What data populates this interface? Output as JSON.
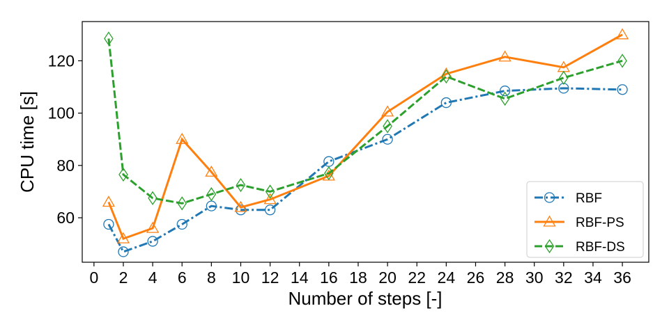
{
  "chart_data": {
    "type": "line",
    "xlabel": "Number of steps [-]",
    "ylabel": "CPU time [s]",
    "xlim": [
      -0.8,
      37.8
    ],
    "ylim": [
      43,
      135
    ],
    "xticks": [
      0,
      2,
      4,
      6,
      8,
      10,
      12,
      14,
      16,
      18,
      20,
      22,
      24,
      26,
      28,
      30,
      32,
      34,
      36
    ],
    "yticks": [
      60,
      80,
      100,
      120
    ],
    "grid": false,
    "legend_position": "lower-right",
    "series": [
      {
        "name": "RBF",
        "color": "#1f77b4",
        "line_style": "dash-dot",
        "marker": "circle",
        "x": [
          1,
          2,
          4,
          6,
          8,
          10,
          12,
          16,
          20,
          24,
          28,
          32,
          36
        ],
        "y": [
          57.5,
          47,
          51,
          57.5,
          64.5,
          63,
          63,
          81.5,
          90,
          104,
          108.5,
          109.5,
          109
        ]
      },
      {
        "name": "RBF-PS",
        "color": "#ff7f0e",
        "line_style": "solid",
        "marker": "triangle",
        "x": [
          1,
          2,
          4,
          6,
          8,
          10,
          12,
          16,
          20,
          24,
          28,
          32,
          36
        ],
        "y": [
          66,
          52,
          56,
          90,
          77.5,
          64,
          67,
          76,
          100.5,
          115,
          121.5,
          117.5,
          130
        ]
      },
      {
        "name": "RBF-DS",
        "color": "#2ca02c",
        "line_style": "dashed",
        "marker": "diamond",
        "x": [
          1,
          2,
          4,
          6,
          8,
          10,
          12,
          16,
          20,
          24,
          28,
          32,
          36
        ],
        "y": [
          128.5,
          76.5,
          67.5,
          65.5,
          69,
          72.5,
          70,
          77,
          95,
          114,
          105.5,
          113.5,
          120
        ]
      }
    ]
  }
}
